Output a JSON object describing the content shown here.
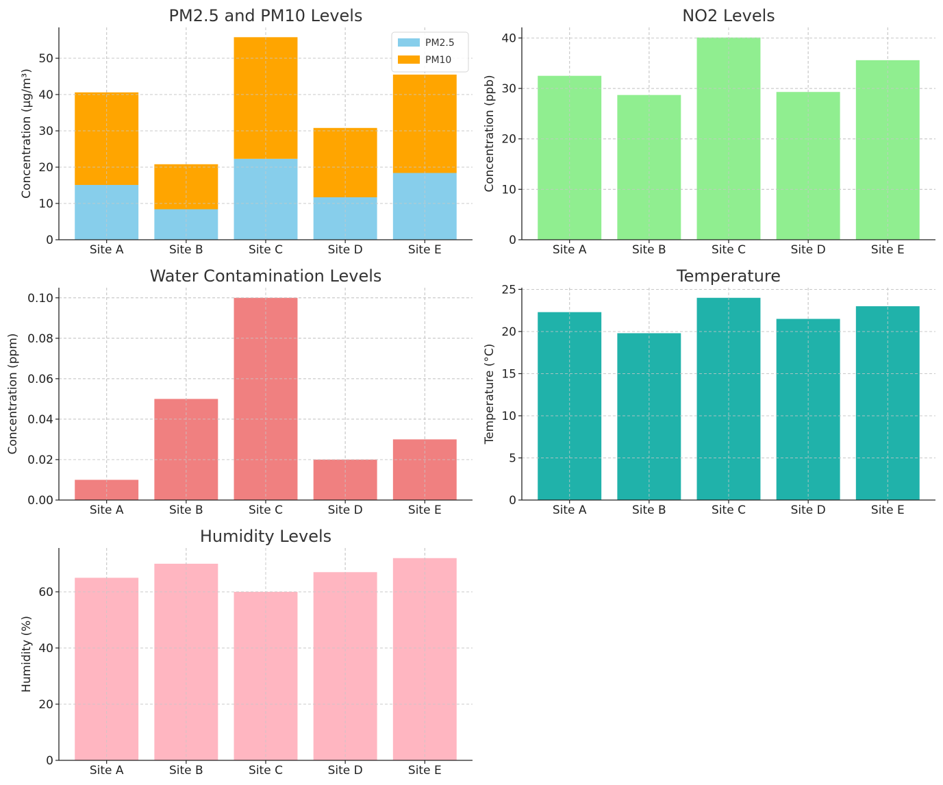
{
  "chart_data": [
    {
      "type": "bar",
      "stacked": true,
      "title": "PM2.5 and PM10 Levels",
      "xlabel": "",
      "ylabel": "Concentration (µg/m³)",
      "categories": [
        "Site A",
        "Site B",
        "Site C",
        "Site D",
        "Site E"
      ],
      "series": [
        {
          "name": "PM2.5",
          "color": "#87ceeb",
          "values": [
            15.1,
            8.4,
            22.3,
            11.7,
            18.4
          ]
        },
        {
          "name": "PM10",
          "color": "#ffa500",
          "values": [
            25.5,
            12.4,
            33.5,
            19.1,
            27.1
          ]
        }
      ],
      "ylim": [
        0,
        58.5
      ],
      "yticks": [
        0,
        10,
        20,
        30,
        40,
        50
      ],
      "ytick_labels": [
        "0",
        "10",
        "20",
        "30",
        "40",
        "50"
      ],
      "grid": true,
      "legend": "top-right"
    },
    {
      "type": "bar",
      "title": "NO2 Levels",
      "xlabel": "",
      "ylabel": "Concentration (ppb)",
      "categories": [
        "Site A",
        "Site B",
        "Site C",
        "Site D",
        "Site E"
      ],
      "series": [
        {
          "color": "#90ee90",
          "values": [
            32.5,
            28.7,
            40.1,
            29.3,
            35.6
          ]
        }
      ],
      "ylim": [
        0,
        42.1
      ],
      "yticks": [
        0,
        10,
        20,
        30,
        40
      ],
      "ytick_labels": [
        "0",
        "10",
        "20",
        "30",
        "40"
      ],
      "grid": true
    },
    {
      "type": "bar",
      "title": "Water Contamination Levels",
      "xlabel": "",
      "ylabel": "Concentration (ppm)",
      "categories": [
        "Site A",
        "Site B",
        "Site C",
        "Site D",
        "Site E"
      ],
      "series": [
        {
          "color": "#f08080",
          "values": [
            0.01,
            0.05,
            0.1,
            0.02,
            0.03
          ]
        }
      ],
      "ylim": [
        0,
        0.105
      ],
      "yticks": [
        0,
        0.02,
        0.04,
        0.06,
        0.08,
        0.1
      ],
      "ytick_labels": [
        "0.00",
        "0.02",
        "0.04",
        "0.06",
        "0.08",
        "0.10"
      ],
      "grid": true
    },
    {
      "type": "bar",
      "title": "Temperature",
      "xlabel": "",
      "ylabel": "Temperature (°C)",
      "categories": [
        "Site A",
        "Site B",
        "Site C",
        "Site D",
        "Site E"
      ],
      "series": [
        {
          "color": "#20b2aa",
          "values": [
            22.3,
            19.8,
            24.0,
            21.5,
            23.0
          ]
        }
      ],
      "ylim": [
        0,
        25.2
      ],
      "yticks": [
        0,
        5,
        10,
        15,
        20,
        25
      ],
      "ytick_labels": [
        "0",
        "5",
        "10",
        "15",
        "20",
        "25"
      ],
      "grid": true
    },
    {
      "type": "bar",
      "title": "Humidity Levels",
      "xlabel": "",
      "ylabel": "Humidity (%)",
      "categories": [
        "Site A",
        "Site B",
        "Site C",
        "Site D",
        "Site E"
      ],
      "series": [
        {
          "color": "#ffb6c1",
          "values": [
            65,
            70,
            60,
            67,
            72
          ]
        }
      ],
      "ylim": [
        0,
        75.6
      ],
      "yticks": [
        0,
        20,
        40,
        60
      ],
      "ytick_labels": [
        "0",
        "20",
        "40",
        "60"
      ],
      "grid": true
    }
  ]
}
